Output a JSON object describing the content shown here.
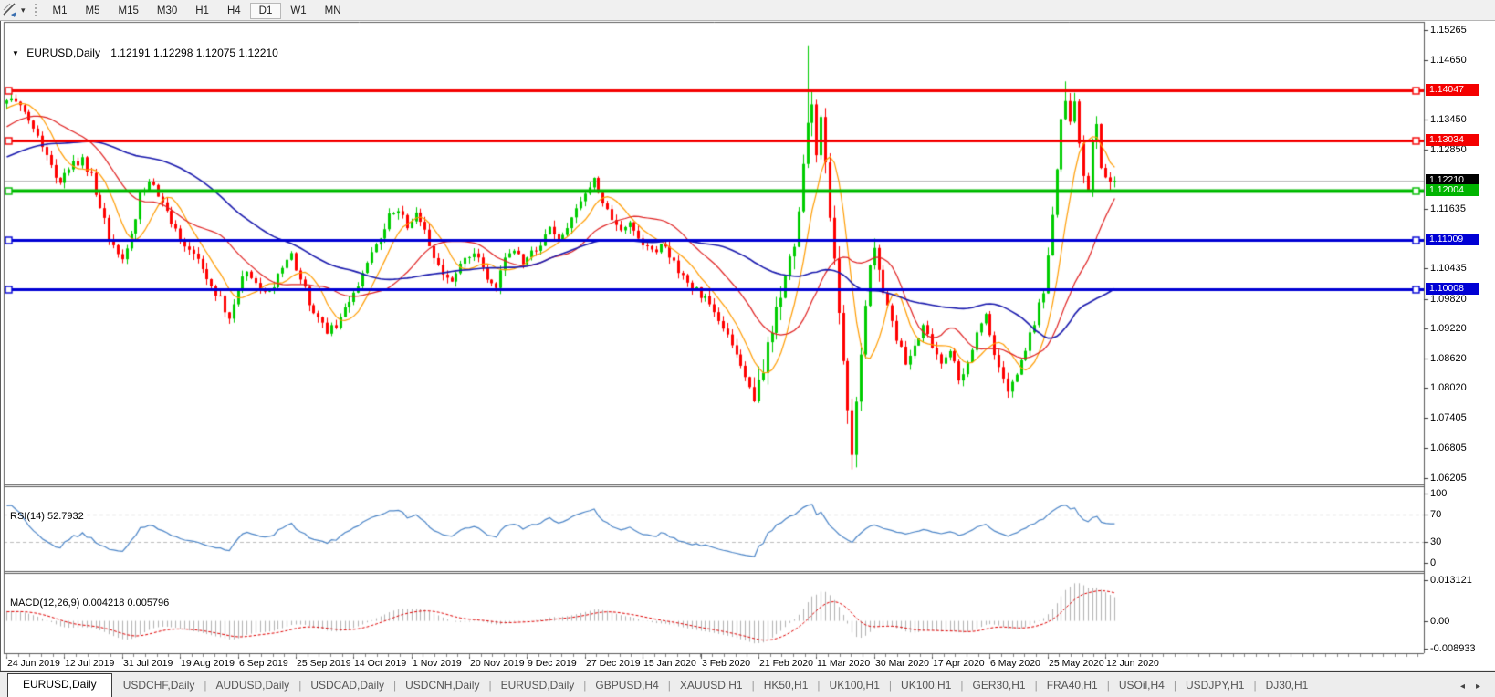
{
  "toolbar": {
    "chart_tool_icon": "indicator-cursor-icon",
    "dropdown_caret": "▾",
    "periods": [
      "M1",
      "M5",
      "M15",
      "M30",
      "H1",
      "H4",
      "D1",
      "W1",
      "MN"
    ],
    "active_period": "D1"
  },
  "price_pane": {
    "title_symbol": "EURUSD,Daily",
    "title_ohlc": "1.12191 1.12298 1.12075 1.12210",
    "axis_ticks": [
      1.15265,
      1.1465,
      1.1345,
      1.1285,
      1.11635,
      1.10435,
      1.0982,
      1.0922,
      1.0862,
      1.0802,
      1.07405,
      1.06805,
      1.06205
    ],
    "price_tags": [
      {
        "label": "1.14047",
        "price": 1.14047,
        "color": "#f40000",
        "role": "resistance-line"
      },
      {
        "label": "1.13034",
        "price": 1.13034,
        "color": "#f40000",
        "role": "resistance-line"
      },
      {
        "label": "1.12210",
        "price": 1.1221,
        "color": "#000000",
        "role": "last-price"
      },
      {
        "label": "1.12004",
        "price": 1.12004,
        "color": "#00b400",
        "role": "support-line"
      },
      {
        "label": "1.11009",
        "price": 1.11009,
        "color": "#0000d4",
        "role": "support-line"
      },
      {
        "label": "1.10008",
        "price": 1.10008,
        "color": "#0000d4",
        "role": "support-line"
      }
    ]
  },
  "rsi_pane": {
    "label": "RSI(14) 52.7932",
    "axis_labels": [
      {
        "text": "100",
        "value": 100
      },
      {
        "text": "70",
        "value": 70
      },
      {
        "text": "30",
        "value": 30
      },
      {
        "text": "0",
        "value": 0
      }
    ]
  },
  "macd_pane": {
    "label": "MACD(12,26,9) 0.004218 0.005796",
    "axis_labels": [
      {
        "text": "0.013121",
        "value": 0.013121
      },
      {
        "text": "0.00",
        "value": 0
      },
      {
        "text": "-0.008933",
        "value": -0.008933
      }
    ]
  },
  "date_axis": {
    "labels": [
      "24 Jun 2019",
      "12 Jul 2019",
      "31 Jul 2019",
      "19 Aug 2019",
      "6 Sep 2019",
      "25 Sep 2019",
      "14 Oct 2019",
      "1 Nov 2019",
      "20 Nov 2019",
      "9 Dec 2019",
      "27 Dec 2019",
      "15 Jan 2020",
      "3 Feb 2020",
      "21 Feb 2020",
      "11 Mar 2020",
      "30 Mar 2020",
      "17 Apr 2020",
      "6 May 2020",
      "25 May 2020",
      "12 Jun 2020"
    ]
  },
  "tab_bar": {
    "tabs": [
      "EURUSD,Daily",
      "USDCHF,Daily",
      "AUDUSD,Daily",
      "USDCAD,Daily",
      "USDCNH,Daily",
      "EURUSD,Daily",
      "GBPUSD,H4",
      "XAUUSD,H1",
      "HK50,H1",
      "UK100,H1",
      "UK100,H1",
      "GER30,H1",
      "FRA40,H1",
      "USOil,H4",
      "USDJPY,H1",
      "DJ30,H1"
    ],
    "active_index": 0,
    "scroll_left": "◂",
    "scroll_right": "▸"
  },
  "chart_data": {
    "type": "candlestick",
    "symbol": "EURUSD",
    "timeframe": "Daily",
    "last_ohlc": {
      "open": 1.12191,
      "high": 1.12298,
      "low": 1.12075,
      "close": 1.1221
    },
    "candle_count": 250,
    "visible_price_range": [
      1.06085,
      1.15407
    ],
    "up_color": "#00cd00",
    "down_color": "#ff0000",
    "last_price_line_color": "#b8b8b8",
    "horizontal_lines": [
      {
        "price": 1.14047,
        "color": "#f40000",
        "width": 3
      },
      {
        "price": 1.13034,
        "color": "#f40000",
        "width": 3
      },
      {
        "price": 1.12004,
        "color": "#00bb00",
        "width": 4
      },
      {
        "price": 1.11009,
        "color": "#0000d4",
        "width": 3
      },
      {
        "price": 1.10008,
        "color": "#0000d4",
        "width": 3
      }
    ],
    "moving_averages": [
      {
        "period": 8,
        "color": "#ff9c00"
      },
      {
        "period": 21,
        "color": "#e02020"
      },
      {
        "period": 50,
        "color": "#1a1aae"
      }
    ],
    "indicators": {
      "rsi": {
        "period": 14,
        "current": 52.7932,
        "levels": [
          70,
          30
        ],
        "color": "#4d86c8",
        "level_color": "#bdbdbd"
      },
      "macd": {
        "fast": 12,
        "slow": 26,
        "signal": 9,
        "current_macd": 0.004218,
        "current_signal": 0.005796,
        "hist_color": "#b2b2b2",
        "signal_color": "#e00000",
        "axis_max": 0.013121,
        "axis_min": -0.008933
      }
    },
    "prehistory_anchors": [
      [
        -60,
        1.1225
      ],
      [
        -45,
        1.1185
      ],
      [
        -30,
        1.1242
      ],
      [
        -15,
        1.1302
      ],
      [
        -5,
        1.1362
      ]
    ],
    "close_path_anchors": [
      [
        0,
        1.1392
      ],
      [
        3,
        1.1375
      ],
      [
        6,
        1.1335
      ],
      [
        9,
        1.1265
      ],
      [
        12,
        1.1215
      ],
      [
        14,
        1.1248
      ],
      [
        17,
        1.1262
      ],
      [
        19,
        1.123
      ],
      [
        21,
        1.117
      ],
      [
        23,
        1.1105
      ],
      [
        26,
        1.1062
      ],
      [
        28,
        1.111
      ],
      [
        30,
        1.119
      ],
      [
        32,
        1.1212
      ],
      [
        34,
        1.1196
      ],
      [
        36,
        1.116
      ],
      [
        38,
        1.1118
      ],
      [
        40,
        1.1096
      ],
      [
        42,
        1.1072
      ],
      [
        44,
        1.1042
      ],
      [
        46,
        1.1012
      ],
      [
        48,
        1.0982
      ],
      [
        50,
        1.0942
      ],
      [
        52,
        1.1005
      ],
      [
        54,
        1.1042
      ],
      [
        56,
        1.1012
      ],
      [
        58,
        1.0992
      ],
      [
        60,
        1.1012
      ],
      [
        62,
        1.1052
      ],
      [
        64,
        1.1072
      ],
      [
        66,
        1.1022
      ],
      [
        68,
        1.0975
      ],
      [
        70,
        1.0942
      ],
      [
        72,
        1.0912
      ],
      [
        74,
        1.0932
      ],
      [
        76,
        1.0972
      ],
      [
        78,
        1.0995
      ],
      [
        80,
        1.1032
      ],
      [
        82,
        1.1072
      ],
      [
        84,
        1.1112
      ],
      [
        86,
        1.1152
      ],
      [
        88,
        1.1162
      ],
      [
        90,
        1.1132
      ],
      [
        92,
        1.116
      ],
      [
        94,
        1.112
      ],
      [
        96,
        1.1072
      ],
      [
        98,
        1.1032
      ],
      [
        100,
        1.1012
      ],
      [
        102,
        1.1052
      ],
      [
        104,
        1.1072
      ],
      [
        106,
        1.1062
      ],
      [
        108,
        1.1022
      ],
      [
        110,
        1.1012
      ],
      [
        112,
        1.1072
      ],
      [
        114,
        1.1082
      ],
      [
        116,
        1.1052
      ],
      [
        118,
        1.1072
      ],
      [
        120,
        1.1092
      ],
      [
        122,
        1.1122
      ],
      [
        124,
        1.1112
      ],
      [
        126,
        1.1122
      ],
      [
        128,
        1.1172
      ],
      [
        130,
        1.1192
      ],
      [
        132,
        1.1222
      ],
      [
        134,
        1.1172
      ],
      [
        136,
        1.1142
      ],
      [
        138,
        1.1122
      ],
      [
        140,
        1.1132
      ],
      [
        142,
        1.1102
      ],
      [
        144,
        1.1092
      ],
      [
        146,
        1.1082
      ],
      [
        148,
        1.1092
      ],
      [
        150,
        1.1052
      ],
      [
        152,
        1.1022
      ],
      [
        154,
        1.1002
      ],
      [
        156,
        1.0992
      ],
      [
        158,
        1.0972
      ],
      [
        160,
        1.0942
      ],
      [
        162,
        1.0902
      ],
      [
        164,
        1.0872
      ],
      [
        166,
        1.0832
      ],
      [
        168,
        1.0792
      ],
      [
        170,
        1.0852
      ],
      [
        172,
        1.0912
      ],
      [
        174,
        1.0992
      ],
      [
        176,
        1.1062
      ],
      [
        178,
        1.1152
      ],
      [
        180,
        1.1342
      ],
      [
        181,
        1.1392
      ],
      [
        182,
        1.1262
      ],
      [
        183,
        1.1342
      ],
      [
        184,
        1.1252
      ],
      [
        185,
        1.1152
      ],
      [
        186,
        1.1052
      ],
      [
        187,
        1.0952
      ],
      [
        188,
        1.0852
      ],
      [
        189,
        1.0752
      ],
      [
        190,
        1.0672
      ],
      [
        191,
        1.0772
      ],
      [
        192,
        1.0872
      ],
      [
        193,
        1.0972
      ],
      [
        194,
        1.1052
      ],
      [
        195,
        1.1092
      ],
      [
        196,
        1.1032
      ],
      [
        198,
        1.0962
      ],
      [
        200,
        1.0902
      ],
      [
        202,
        1.0852
      ],
      [
        204,
        1.0882
      ],
      [
        206,
        1.0922
      ],
      [
        208,
        1.0882
      ],
      [
        210,
        1.0852
      ],
      [
        212,
        1.0872
      ],
      [
        214,
        1.0822
      ],
      [
        216,
        1.0852
      ],
      [
        218,
        1.0912
      ],
      [
        220,
        1.0952
      ],
      [
        221,
        1.0902
      ],
      [
        223,
        1.0852
      ],
      [
        225,
        1.0802
      ],
      [
        227,
        1.0832
      ],
      [
        229,
        1.0882
      ],
      [
        231,
        1.0932
      ],
      [
        233,
        1.1002
      ],
      [
        234,
        1.1062
      ],
      [
        235,
        1.1142
      ],
      [
        236,
        1.1252
      ],
      [
        237,
        1.1342
      ],
      [
        238,
        1.1392
      ],
      [
        239,
        1.1342
      ],
      [
        240,
        1.1372
      ],
      [
        241,
        1.1302
      ],
      [
        242,
        1.1242
      ],
      [
        243,
        1.1208
      ],
      [
        244,
        1.1292
      ],
      [
        245,
        1.1342
      ],
      [
        246,
        1.1252
      ],
      [
        247,
        1.1228
      ],
      [
        248,
        1.1219
      ],
      [
        249,
        1.1221
      ]
    ],
    "volatility_regions": [
      [
        168,
        196,
        2.2
      ],
      [
        234,
        249,
        1.5
      ]
    ],
    "wick_overrides": [
      {
        "i": 180,
        "high": 1.1495
      },
      {
        "i": 190,
        "low": 1.0637
      },
      {
        "i": 238,
        "high": 1.1422
      }
    ],
    "noise_seed": 12
  }
}
